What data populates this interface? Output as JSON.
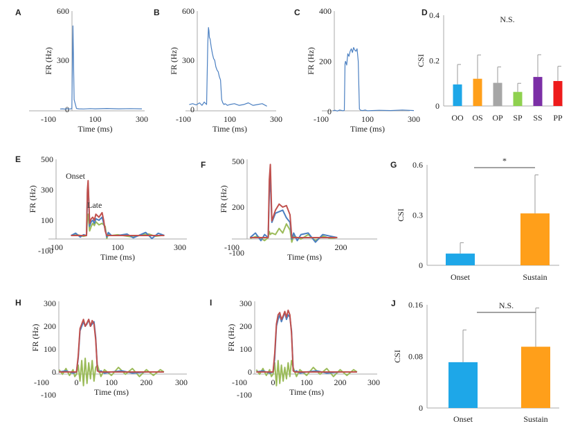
{
  "colors": {
    "blue": "#4a7fc1",
    "red": "#c0504d",
    "green": "#9bbb59",
    "axis": "#aaaaaa"
  },
  "chart_data": [
    {
      "panel": "A",
      "type": "line",
      "xlabel": "Time (ms)",
      "ylabel": "FR (Hz)",
      "xlim": [
        -100,
        300
      ],
      "ylim": [
        0,
        600
      ],
      "xticks": [
        -100,
        100,
        300
      ],
      "yticks": [
        0,
        300,
        600
      ],
      "series": [
        {
          "color": "blue",
          "x": [
            -50,
            -40,
            -30,
            -20,
            -10,
            -5,
            0,
            2,
            5,
            10,
            20,
            30,
            50,
            80,
            100,
            150,
            200,
            250,
            300
          ],
          "y": [
            3,
            4,
            2,
            5,
            3,
            4,
            5,
            200,
            510,
            60,
            6,
            4,
            3,
            5,
            4,
            6,
            4,
            5,
            4
          ]
        }
      ]
    },
    {
      "panel": "B",
      "type": "line",
      "xlabel": "Time (ms)",
      "ylabel": "FR (Hz)",
      "xlim": [
        -100,
        300
      ],
      "ylim": [
        0,
        600
      ],
      "xticks": [
        -100,
        100,
        300
      ],
      "yticks": [
        0,
        300,
        600
      ],
      "series": [
        {
          "color": "blue",
          "x": [
            -75,
            -60,
            -45,
            -30,
            -20,
            -10,
            0,
            5,
            8,
            10,
            12,
            15,
            20,
            25,
            30,
            35,
            40,
            45,
            50,
            55,
            60,
            65,
            70,
            75,
            80,
            90,
            100,
            120,
            140,
            160,
            180,
            200,
            220,
            240,
            260
          ],
          "y": [
            30,
            35,
            28,
            40,
            25,
            45,
            30,
            400,
            500,
            480,
            440,
            430,
            380,
            340,
            310,
            300,
            260,
            240,
            230,
            200,
            180,
            60,
            40,
            30,
            35,
            25,
            30,
            35,
            25,
            30,
            40,
            25,
            30,
            35,
            20
          ]
        }
      ]
    },
    {
      "panel": "C",
      "type": "line",
      "xlabel": "Time (ms)",
      "ylabel": "FR (Hz)",
      "xlim": [
        -100,
        300
      ],
      "ylim": [
        0,
        400
      ],
      "xticks": [
        -100,
        100,
        300
      ],
      "yticks": [
        0,
        200,
        400
      ],
      "series": [
        {
          "color": "blue",
          "x": [
            -50,
            -40,
            -30,
            -20,
            -10,
            -5,
            0,
            3,
            5,
            10,
            15,
            20,
            25,
            30,
            35,
            40,
            45,
            50,
            55,
            60,
            65,
            70,
            80,
            90,
            100,
            150,
            200,
            250,
            300
          ],
          "y": [
            3,
            5,
            2,
            6,
            4,
            3,
            5,
            190,
            200,
            185,
            230,
            220,
            240,
            250,
            235,
            255,
            245,
            240,
            250,
            200,
            10,
            5,
            4,
            6,
            3,
            5,
            4,
            6,
            4
          ]
        }
      ]
    },
    {
      "panel": "D",
      "type": "bar",
      "title": "N.S.",
      "ylabel": "CSI",
      "ylim": [
        0,
        0.4
      ],
      "yticks": [
        "0",
        "0.2",
        "0.4"
      ],
      "categories": [
        "OO",
        "OS",
        "OP",
        "SP",
        "SS",
        "PP"
      ],
      "values": [
        0.095,
        0.12,
        0.102,
        0.062,
        0.128,
        0.11
      ],
      "errors": [
        0.088,
        0.105,
        0.07,
        0.038,
        0.098,
        0.065
      ],
      "bar_colors": [
        "#1ea7e8",
        "#ff9f1a",
        "#a6a6a6",
        "#8fd14f",
        "#7b2fa6",
        "#ee1c1c"
      ]
    },
    {
      "panel": "E",
      "type": "line",
      "xlabel": "Time (ms)",
      "ylabel": "FR (Hz)",
      "xlim": [
        -100,
        300
      ],
      "ylim": [
        -100,
        500
      ],
      "xticks": [
        -100,
        100,
        300
      ],
      "yticks": [
        -100,
        100,
        300,
        500
      ],
      "annotations": [
        "Onset",
        "Late"
      ],
      "series": [
        {
          "color": "green",
          "x": [
            -50,
            -30,
            -10,
            0,
            3,
            5,
            10,
            15,
            20,
            25,
            30,
            40,
            50,
            60,
            65,
            70,
            80,
            100,
            150,
            180,
            200,
            220,
            240,
            250
          ],
          "y": [
            0,
            5,
            -5,
            0,
            120,
            140,
            30,
            60,
            80,
            65,
            90,
            70,
            80,
            60,
            -20,
            10,
            0,
            5,
            -10,
            5,
            10,
            -5,
            0,
            0
          ]
        },
        {
          "color": "blue",
          "x": [
            -50,
            -35,
            -20,
            -10,
            0,
            3,
            5,
            10,
            15,
            20,
            25,
            30,
            40,
            50,
            55,
            60,
            65,
            70,
            80,
            100,
            130,
            150,
            190,
            210,
            230,
            250
          ],
          "y": [
            0,
            15,
            -10,
            5,
            0,
            280,
            340,
            60,
            90,
            100,
            80,
            110,
            100,
            120,
            80,
            40,
            -10,
            20,
            0,
            0,
            10,
            -15,
            20,
            -20,
            15,
            0
          ]
        },
        {
          "color": "red",
          "x": [
            -50,
            -20,
            0,
            3,
            5,
            10,
            15,
            20,
            25,
            30,
            40,
            50,
            55,
            60,
            65,
            70,
            100,
            150,
            200,
            250
          ],
          "y": [
            0,
            0,
            0,
            300,
            360,
            80,
            110,
            120,
            100,
            140,
            120,
            150,
            100,
            30,
            0,
            0,
            0,
            0,
            0,
            0
          ]
        }
      ]
    },
    {
      "panel": "F",
      "type": "line",
      "xlabel": "Time (ms)",
      "ylabel": "FR (Hz)",
      "xlim": [
        -100,
        300
      ],
      "ylim": [
        -100,
        500
      ],
      "xticks": [
        -100,
        200
      ],
      "yticks": [
        -100,
        200,
        500
      ],
      "series": [
        {
          "color": "green",
          "x": [
            -50,
            -30,
            -10,
            0,
            3,
            6,
            10,
            20,
            30,
            40,
            50,
            60,
            65,
            70,
            90,
            110,
            130,
            150,
            170,
            190
          ],
          "y": [
            -5,
            10,
            -20,
            0,
            40,
            20,
            30,
            20,
            60,
            30,
            90,
            50,
            -30,
            10,
            -10,
            20,
            -20,
            10,
            -5,
            0
          ]
        },
        {
          "color": "blue",
          "x": [
            -50,
            -35,
            -20,
            -10,
            0,
            3,
            6,
            10,
            20,
            30,
            40,
            50,
            60,
            65,
            70,
            80,
            90,
            110,
            130,
            150,
            170,
            190
          ],
          "y": [
            0,
            30,
            -20,
            20,
            0,
            300,
            380,
            100,
            160,
            170,
            180,
            130,
            100,
            -10,
            30,
            -20,
            20,
            30,
            -30,
            20,
            10,
            0
          ]
        },
        {
          "color": "red",
          "x": [
            -50,
            -20,
            0,
            3,
            6,
            10,
            20,
            30,
            40,
            50,
            60,
            65,
            70,
            100,
            150,
            190
          ],
          "y": [
            0,
            0,
            0,
            380,
            480,
            110,
            180,
            220,
            200,
            210,
            150,
            0,
            0,
            0,
            0,
            0
          ]
        }
      ]
    },
    {
      "panel": "G",
      "type": "bar",
      "ylabel": "CSI",
      "ylim": [
        0,
        0.6
      ],
      "yticks": [
        "0",
        "0.3",
        "0.6"
      ],
      "categories": [
        "Onset",
        "Sustain"
      ],
      "values": [
        0.07,
        0.31
      ],
      "errors": [
        0.065,
        0.23
      ],
      "bar_colors": [
        "#1ea7e8",
        "#ff9f1a"
      ],
      "significance": "*"
    },
    {
      "panel": "H",
      "type": "line",
      "xlabel": "Time (ms)",
      "ylabel": "FR (Hz)",
      "xlim": [
        -100,
        300
      ],
      "ylim": [
        -100,
        300
      ],
      "xticks": [
        -100,
        0,
        100,
        200,
        300
      ],
      "yticks": [
        -100,
        0,
        100,
        200,
        300
      ],
      "series": [
        {
          "color": "green",
          "x": [
            -50,
            -40,
            -30,
            -20,
            -10,
            -5,
            0,
            5,
            10,
            15,
            20,
            25,
            30,
            35,
            40,
            45,
            50,
            55,
            60,
            70,
            80,
            100,
            120,
            140,
            160,
            180,
            200,
            220,
            240,
            250
          ],
          "y": [
            10,
            -10,
            15,
            -15,
            10,
            -20,
            -10,
            30,
            -40,
            50,
            -60,
            60,
            -50,
            40,
            -30,
            50,
            -40,
            20,
            30,
            -20,
            10,
            -15,
            20,
            -10,
            15,
            -20,
            10,
            -15,
            10,
            0
          ]
        },
        {
          "color": "blue",
          "x": [
            -50,
            -30,
            -10,
            0,
            5,
            10,
            15,
            20,
            25,
            30,
            35,
            40,
            45,
            50,
            55,
            60,
            65,
            70,
            80,
            100,
            130,
            160,
            200,
            250
          ],
          "y": [
            0,
            5,
            -5,
            0,
            60,
            180,
            200,
            220,
            200,
            210,
            230,
            200,
            210,
            220,
            150,
            10,
            0,
            5,
            -5,
            0,
            5,
            -5,
            0,
            0
          ]
        },
        {
          "color": "red",
          "x": [
            -50,
            -10,
            0,
            5,
            10,
            15,
            20,
            25,
            30,
            35,
            40,
            45,
            50,
            55,
            60,
            65,
            100,
            150,
            200,
            250
          ],
          "y": [
            0,
            0,
            0,
            70,
            190,
            210,
            230,
            200,
            215,
            230,
            200,
            225,
            210,
            140,
            5,
            0,
            0,
            0,
            0,
            0
          ]
        }
      ]
    },
    {
      "panel": "I",
      "type": "line",
      "xlabel": "Time (ms)",
      "ylabel": "FR (Hz)",
      "xlim": [
        -100,
        300
      ],
      "ylim": [
        -100,
        300
      ],
      "xticks": [
        -100,
        0,
        100,
        200,
        300
      ],
      "yticks": [
        -100,
        0,
        100,
        200,
        300
      ],
      "series": [
        {
          "color": "green",
          "x": [
            -50,
            -40,
            -30,
            -20,
            -10,
            -5,
            0,
            5,
            10,
            15,
            20,
            25,
            30,
            35,
            40,
            45,
            50,
            55,
            60,
            70,
            80,
            100,
            120,
            140,
            160,
            180,
            200,
            220,
            240,
            250
          ],
          "y": [
            10,
            -10,
            15,
            -15,
            10,
            -20,
            -10,
            40,
            -60,
            50,
            -50,
            30,
            -40,
            20,
            -30,
            40,
            -20,
            50,
            20,
            -20,
            10,
            -15,
            20,
            -10,
            15,
            -20,
            10,
            -15,
            10,
            0
          ]
        },
        {
          "color": "blue",
          "x": [
            -50,
            -30,
            -10,
            0,
            5,
            10,
            15,
            20,
            25,
            30,
            35,
            40,
            45,
            50,
            55,
            60,
            65,
            70,
            80,
            100,
            130,
            160,
            200,
            250
          ],
          "y": [
            0,
            5,
            -5,
            0,
            60,
            200,
            230,
            250,
            220,
            240,
            260,
            230,
            250,
            240,
            180,
            10,
            0,
            5,
            -5,
            0,
            5,
            -5,
            0,
            0
          ]
        },
        {
          "color": "red",
          "x": [
            -50,
            -10,
            0,
            5,
            10,
            15,
            20,
            25,
            30,
            35,
            40,
            45,
            50,
            55,
            60,
            65,
            100,
            150,
            200,
            250
          ],
          "y": [
            0,
            0,
            0,
            80,
            210,
            250,
            260,
            230,
            245,
            265,
            240,
            270,
            250,
            170,
            5,
            0,
            0,
            0,
            0,
            0
          ]
        }
      ]
    },
    {
      "panel": "J",
      "type": "bar",
      "ylabel": "CSI",
      "ylim": [
        0,
        0.16
      ],
      "yticks": [
        "0",
        "0.08",
        "0.16"
      ],
      "categories": [
        "Onset",
        "Sustain"
      ],
      "values": [
        0.071,
        0.095
      ],
      "errors": [
        0.05,
        0.06
      ],
      "bar_colors": [
        "#1ea7e8",
        "#ff9f1a"
      ],
      "significance": "N.S."
    }
  ]
}
